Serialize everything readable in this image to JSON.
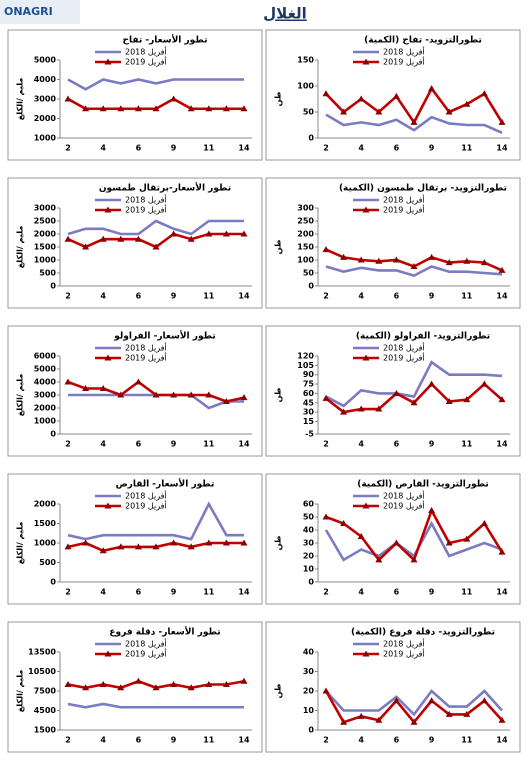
{
  "header": {
    "title": "الغلال",
    "logo": "ONAGRI"
  },
  "chart_data": [
    {
      "type": "line",
      "title": "تطورالتزويد- تفاح (الكمية)",
      "ylabel": "طن",
      "categories": [
        2,
        null,
        4,
        null,
        6,
        null,
        9,
        null,
        11,
        null,
        14
      ],
      "ylim": [
        0,
        150
      ],
      "yticks": [
        0,
        50,
        100,
        150
      ],
      "series": [
        {
          "name": "أفريل 2018",
          "color": "#7b7bc2",
          "values": [
            45,
            25,
            30,
            25,
            35,
            15,
            40,
            28,
            25,
            25,
            10
          ]
        },
        {
          "name": "أفريل 2019",
          "color": "#c00000",
          "marker": "triangle",
          "values": [
            85,
            50,
            75,
            50,
            80,
            30,
            95,
            50,
            65,
            85,
            30
          ]
        }
      ]
    },
    {
      "type": "line",
      "title": "تطور الأسعار- تفاح",
      "ylabel": "مليم /الكلغ",
      "categories": [
        2,
        null,
        4,
        null,
        6,
        null,
        9,
        null,
        11,
        null,
        14
      ],
      "ylim": [
        1000,
        5000
      ],
      "yticks": [
        1000,
        2000,
        3000,
        4000,
        5000
      ],
      "series": [
        {
          "name": "أفريل 2018",
          "color": "#7b7bc2",
          "values": [
            4000,
            3500,
            4000,
            3800,
            4000,
            3800,
            4000,
            4000,
            4000,
            4000,
            4000
          ]
        },
        {
          "name": "أفريل 2019",
          "color": "#c00000",
          "marker": "triangle",
          "values": [
            3000,
            2500,
            2500,
            2500,
            2500,
            2500,
            3000,
            2500,
            2500,
            2500,
            2500
          ]
        }
      ]
    },
    {
      "type": "line",
      "title": "تطورالتزويد- برتقال طمسون (الكمية)",
      "ylabel": "طن",
      "categories": [
        2,
        null,
        4,
        null,
        6,
        null,
        9,
        null,
        11,
        null,
        14
      ],
      "ylim": [
        0,
        300
      ],
      "yticks": [
        0,
        50,
        100,
        150,
        200,
        250,
        300
      ],
      "series": [
        {
          "name": "أفريل 2018",
          "color": "#7b7bc2",
          "values": [
            75,
            55,
            70,
            60,
            60,
            40,
            75,
            55,
            55,
            50,
            45
          ]
        },
        {
          "name": "أفريل 2019",
          "color": "#c00000",
          "marker": "triangle",
          "values": [
            140,
            110,
            100,
            95,
            100,
            75,
            110,
            90,
            95,
            90,
            60
          ]
        }
      ]
    },
    {
      "type": "line",
      "title": "تطور الأسعار-برتقال طمسون",
      "ylabel": "مليم /الكلغ",
      "categories": [
        2,
        null,
        4,
        null,
        6,
        null,
        9,
        null,
        11,
        null,
        14
      ],
      "ylim": [
        0,
        3000
      ],
      "yticks": [
        0,
        500,
        1000,
        1500,
        2000,
        2500,
        3000
      ],
      "series": [
        {
          "name": "أفريل 2018",
          "color": "#7b7bc2",
          "values": [
            2000,
            2200,
            2200,
            2000,
            2000,
            2500,
            2200,
            2000,
            2500,
            2500,
            2500
          ]
        },
        {
          "name": "أفريل 2019",
          "color": "#c00000",
          "marker": "triangle",
          "values": [
            1800,
            1500,
            1800,
            1800,
            1800,
            1500,
            2000,
            1800,
            2000,
            2000,
            2000
          ]
        }
      ]
    },
    {
      "type": "line",
      "title": "تطورالتزويد- الفراولو (الكمية)",
      "ylabel": "طن",
      "categories": [
        2,
        null,
        4,
        null,
        6,
        null,
        9,
        null,
        11,
        null,
        14
      ],
      "ylim": [
        -5,
        120
      ],
      "yticks": [
        -5,
        15,
        30,
        45,
        60,
        75,
        90,
        105,
        120
      ],
      "series": [
        {
          "name": "أفريل 2018",
          "color": "#7b7bc2",
          "values": [
            55,
            40,
            65,
            60,
            60,
            55,
            110,
            90,
            90,
            90,
            88
          ]
        },
        {
          "name": "أفريل 2019",
          "color": "#c00000",
          "marker": "triangle",
          "values": [
            52,
            30,
            35,
            35,
            60,
            45,
            75,
            47,
            50,
            75,
            50
          ]
        }
      ]
    },
    {
      "type": "line",
      "title": "تطور الأسعار- الفراولو",
      "ylabel": "مليم /الكلغ",
      "categories": [
        2,
        null,
        4,
        null,
        6,
        null,
        9,
        null,
        11,
        null,
        14
      ],
      "ylim": [
        0,
        6000
      ],
      "yticks": [
        0,
        1000,
        2000,
        3000,
        4000,
        5000,
        6000
      ],
      "series": [
        {
          "name": "أفريل 2018",
          "color": "#7b7bc2",
          "values": [
            3000,
            3000,
            3000,
            3000,
            3000,
            3000,
            3000,
            3000,
            2000,
            2500,
            2500
          ]
        },
        {
          "name": "أفريل 2019",
          "color": "#c00000",
          "marker": "triangle",
          "values": [
            4000,
            3500,
            3500,
            3000,
            4000,
            3000,
            3000,
            3000,
            3000,
            2500,
            2800
          ]
        }
      ]
    },
    {
      "type": "line",
      "title": "تطورالتزويد- القارص (الكمية)",
      "ylabel": "طن",
      "categories": [
        2,
        null,
        4,
        null,
        6,
        null,
        9,
        null,
        11,
        null,
        14
      ],
      "ylim": [
        0,
        60
      ],
      "yticks": [
        0,
        10,
        20,
        30,
        40,
        50,
        60
      ],
      "series": [
        {
          "name": "أفريل 2018",
          "color": "#7b7bc2",
          "values": [
            40,
            17,
            25,
            20,
            30,
            20,
            45,
            20,
            25,
            30,
            25
          ]
        },
        {
          "name": "أفريل 2019",
          "color": "#c00000",
          "marker": "triangle",
          "values": [
            50,
            45,
            35,
            17,
            30,
            17,
            55,
            30,
            33,
            45,
            23
          ]
        }
      ]
    },
    {
      "type": "line",
      "title": "تطور الأسعار- القارص",
      "ylabel": "مليم /الكلغ",
      "categories": [
        2,
        null,
        4,
        null,
        6,
        null,
        9,
        null,
        11,
        null,
        14
      ],
      "ylim": [
        0,
        2000
      ],
      "yticks": [
        0,
        500,
        1000,
        1500,
        2000
      ],
      "series": [
        {
          "name": "أفريل 2018",
          "color": "#7b7bc2",
          "values": [
            1200,
            1100,
            1200,
            1200,
            1200,
            1200,
            1200,
            1100,
            2000,
            1200,
            1200
          ]
        },
        {
          "name": "أفريل 2019",
          "color": "#c00000",
          "marker": "triangle",
          "values": [
            900,
            1000,
            800,
            900,
            900,
            900,
            1000,
            900,
            1000,
            1000,
            1000
          ]
        }
      ]
    },
    {
      "type": "line",
      "title": "تطورالتزويد- دقلة فروع (الكمية)",
      "ylabel": "طن",
      "categories": [
        2,
        null,
        4,
        null,
        6,
        null,
        9,
        null,
        11,
        null,
        14
      ],
      "ylim": [
        0,
        40
      ],
      "yticks": [
        0,
        10,
        20,
        30,
        40
      ],
      "series": [
        {
          "name": "أفريل 2018",
          "color": "#7b7bc2",
          "values": [
            20,
            10,
            10,
            10,
            17,
            8,
            20,
            12,
            12,
            20,
            10
          ]
        },
        {
          "name": "أفريل 2019",
          "color": "#c00000",
          "marker": "triangle",
          "values": [
            20,
            4,
            7,
            5,
            15,
            4,
            15,
            8,
            8,
            15,
            5
          ]
        }
      ]
    },
    {
      "type": "line",
      "title": "تطور الأسعار- دقلة فروع",
      "ylabel": "مليم /الكلغ",
      "categories": [
        2,
        null,
        4,
        null,
        6,
        null,
        9,
        null,
        11,
        null,
        14
      ],
      "ylim": [
        1500,
        13500
      ],
      "yticks": [
        1500,
        4500,
        7500,
        10500,
        13500
      ],
      "series": [
        {
          "name": "أفريل 2018",
          "color": "#7b7bc2",
          "values": [
            5500,
            5000,
            5500,
            5000,
            5000,
            5000,
            5000,
            5000,
            5000,
            5000,
            5000
          ]
        },
        {
          "name": "أفريل 2019",
          "color": "#c00000",
          "marker": "triangle",
          "values": [
            8500,
            8000,
            8500,
            8000,
            9000,
            8000,
            8500,
            8000,
            8500,
            8500,
            9000
          ]
        }
      ]
    }
  ]
}
